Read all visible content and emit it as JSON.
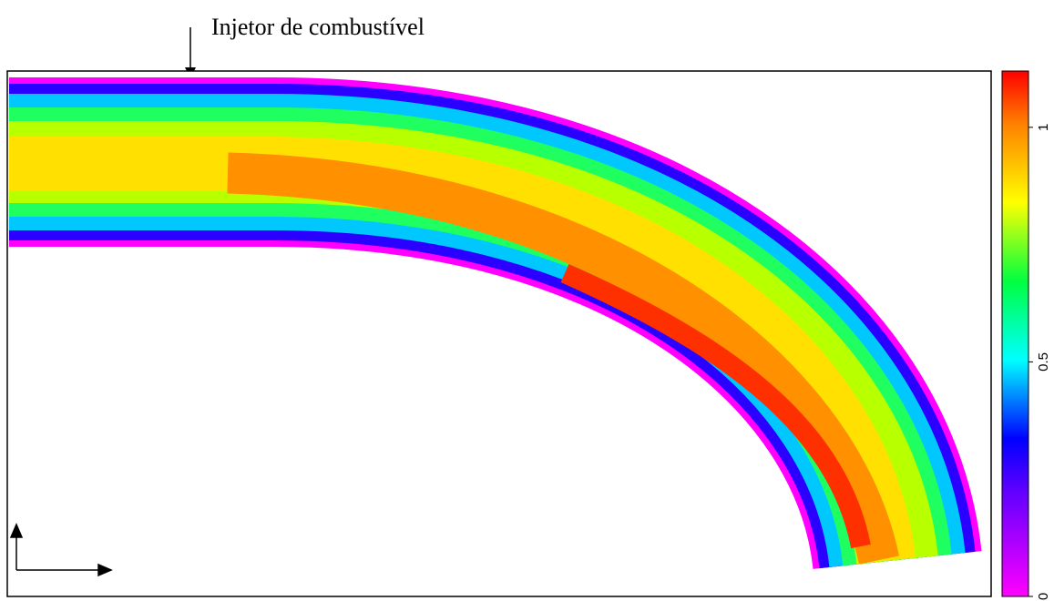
{
  "annotation": "Injetor de combustível",
  "colorbar": {
    "lim": [
      0,
      1.12
    ],
    "ticks": [
      0,
      0.5,
      1
    ]
  }
}
